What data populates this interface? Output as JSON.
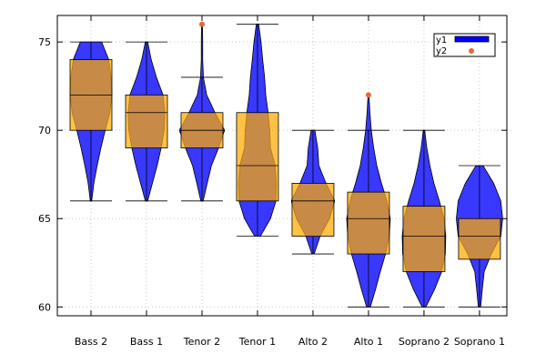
{
  "chart_data": {
    "type": "violin",
    "categories": [
      "Bass 2",
      "Bass 1",
      "Tenor 2",
      "Tenor 1",
      "Alto 2",
      "Alto 1",
      "Soprano 2",
      "Soprano 1"
    ],
    "yticks": [
      60,
      65,
      70,
      75
    ],
    "ylim": [
      59.5,
      76.5
    ],
    "grid": true,
    "legend": {
      "position": "top-right",
      "entries": [
        {
          "name": "y1",
          "color": "#0000ff"
        },
        {
          "name": "y2",
          "color": "#e8653a"
        }
      ]
    },
    "colors": {
      "violin": "#0000ff",
      "box": "#ffaa00",
      "outlier": "#e8653a"
    },
    "groups": [
      {
        "name": "Bass 2",
        "min": 66,
        "max": 75,
        "q1": 70,
        "median": 72,
        "q3": 74,
        "density": [
          [
            66,
            0.03
          ],
          [
            67,
            0.12
          ],
          [
            68,
            0.26
          ],
          [
            69,
            0.42
          ],
          [
            70,
            0.6
          ],
          [
            71,
            0.8
          ],
          [
            72,
            0.88
          ],
          [
            73,
            0.85
          ],
          [
            74,
            0.75
          ],
          [
            75,
            0.45
          ]
        ],
        "outliers": []
      },
      {
        "name": "Bass 1",
        "min": 66,
        "max": 75,
        "q1": 69,
        "median": 71,
        "q3": 72,
        "density": [
          [
            66,
            0.05
          ],
          [
            67,
            0.25
          ],
          [
            68,
            0.45
          ],
          [
            69,
            0.62
          ],
          [
            70,
            0.75
          ],
          [
            71,
            0.78
          ],
          [
            72,
            0.7
          ],
          [
            73,
            0.42
          ],
          [
            74,
            0.2
          ],
          [
            75,
            0.05
          ]
        ],
        "outliers": []
      },
      {
        "name": "Tenor 2",
        "min": 66,
        "max": 73,
        "q1": 69,
        "median": 70,
        "q3": 71,
        "density": [
          [
            66,
            0.05
          ],
          [
            67,
            0.22
          ],
          [
            68,
            0.4
          ],
          [
            69,
            0.7
          ],
          [
            70,
            0.95
          ],
          [
            71,
            0.55
          ],
          [
            72,
            0.2
          ],
          [
            73,
            0.06
          ],
          [
            74,
            0.03
          ],
          [
            75,
            0.03
          ],
          [
            76,
            0.02
          ]
        ],
        "outliers": [
          76
        ]
      },
      {
        "name": "Tenor 1",
        "min": 64,
        "max": 76,
        "q1": 66,
        "median": 68,
        "q3": 71,
        "density": [
          [
            64,
            0.12
          ],
          [
            65,
            0.55
          ],
          [
            66,
            0.78
          ],
          [
            67,
            0.8
          ],
          [
            68,
            0.75
          ],
          [
            69,
            0.55
          ],
          [
            70,
            0.52
          ],
          [
            71,
            0.45
          ],
          [
            72,
            0.35
          ],
          [
            73,
            0.3
          ],
          [
            74,
            0.22
          ],
          [
            75,
            0.15
          ],
          [
            76,
            0.05
          ]
        ],
        "outliers": []
      },
      {
        "name": "Alto 2",
        "min": 63,
        "max": 70,
        "q1": 64,
        "median": 66,
        "q3": 67,
        "density": [
          [
            63,
            0.05
          ],
          [
            64,
            0.3
          ],
          [
            65,
            0.7
          ],
          [
            66,
            0.92
          ],
          [
            67,
            0.55
          ],
          [
            68,
            0.25
          ],
          [
            69,
            0.2
          ],
          [
            70,
            0.08
          ]
        ],
        "outliers": []
      },
      {
        "name": "Alto 1",
        "min": 60,
        "max": 70,
        "q1": 63,
        "median": 65,
        "q3": 66.5,
        "density": [
          [
            60,
            0.08
          ],
          [
            61,
            0.3
          ],
          [
            62,
            0.5
          ],
          [
            63,
            0.72
          ],
          [
            64,
            0.88
          ],
          [
            65,
            0.92
          ],
          [
            66,
            0.78
          ],
          [
            67,
            0.55
          ],
          [
            68,
            0.35
          ],
          [
            69,
            0.22
          ],
          [
            70,
            0.12
          ],
          [
            71,
            0.06
          ],
          [
            72,
            0.02
          ]
        ],
        "outliers": [
          72
        ]
      },
      {
        "name": "Soprano 2",
        "min": 60,
        "max": 70,
        "q1": 62,
        "median": 64,
        "q3": 65.7,
        "density": [
          [
            60,
            0.08
          ],
          [
            61,
            0.45
          ],
          [
            62,
            0.75
          ],
          [
            63,
            0.9
          ],
          [
            64,
            0.92
          ],
          [
            65,
            0.85
          ],
          [
            66,
            0.65
          ],
          [
            67,
            0.42
          ],
          [
            68,
            0.25
          ],
          [
            69,
            0.12
          ],
          [
            70,
            0.03
          ]
        ],
        "outliers": []
      },
      {
        "name": "Soprano 1",
        "min": 60,
        "max": 68,
        "q1": 62.7,
        "median": 64,
        "q3": 65,
        "density": [
          [
            60,
            0.05
          ],
          [
            61,
            0.12
          ],
          [
            62,
            0.2
          ],
          [
            63,
            0.5
          ],
          [
            64,
            0.9
          ],
          [
            65,
            0.98
          ],
          [
            66,
            0.9
          ],
          [
            67,
            0.6
          ],
          [
            68,
            0.15
          ]
        ],
        "outliers": []
      }
    ]
  }
}
